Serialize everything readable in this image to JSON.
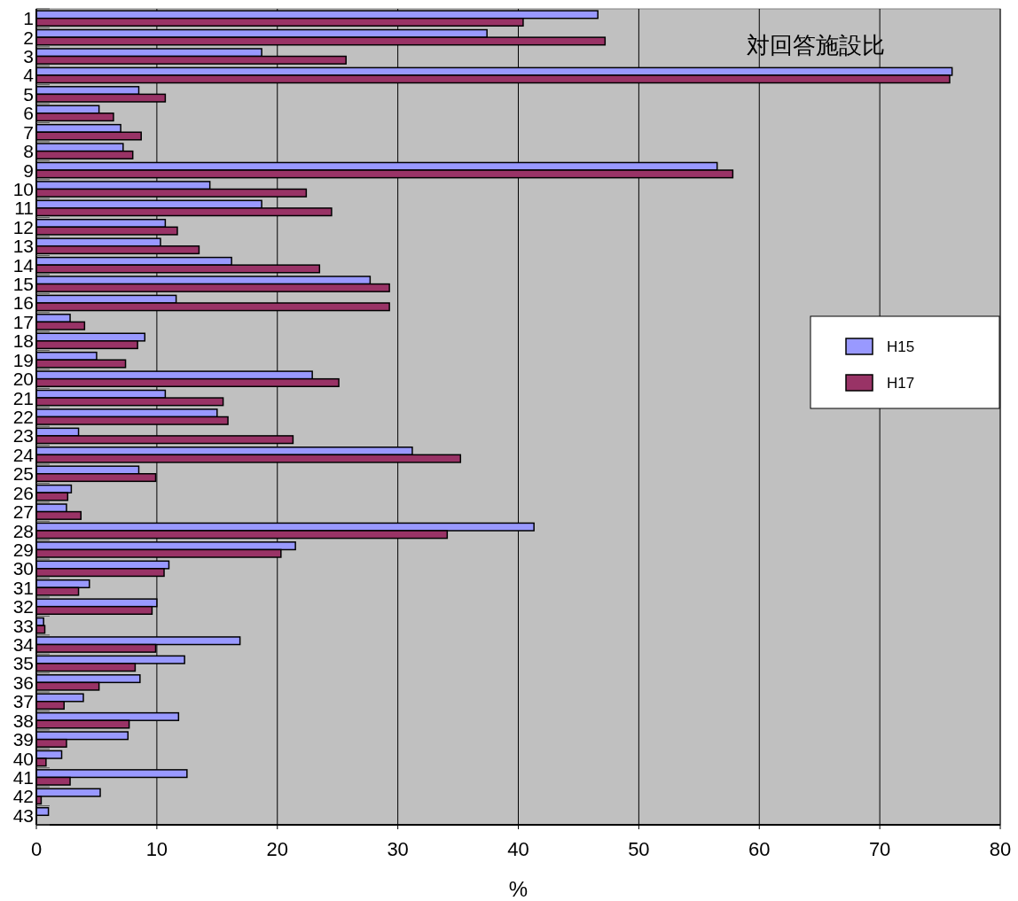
{
  "chart_data": {
    "type": "bar",
    "orientation": "horizontal",
    "title": "対回答施設比",
    "xlabel": "%",
    "categories": [
      "1",
      "2",
      "3",
      "4",
      "5",
      "6",
      "7",
      "8",
      "9",
      "10",
      "11",
      "12",
      "13",
      "14",
      "15",
      "16",
      "17",
      "18",
      "19",
      "20",
      "21",
      "22",
      "23",
      "24",
      "25",
      "26",
      "27",
      "28",
      "29",
      "30",
      "31",
      "32",
      "33",
      "34",
      "35",
      "36",
      "37",
      "38",
      "39",
      "40",
      "41",
      "42",
      "43"
    ],
    "series": [
      {
        "name": "H15",
        "color": "#9999ff",
        "values": [
          46.6,
          37.4,
          18.7,
          76.0,
          8.5,
          5.2,
          7.0,
          7.2,
          56.5,
          14.4,
          18.7,
          10.7,
          10.3,
          16.2,
          27.7,
          11.6,
          2.8,
          9.0,
          5.0,
          22.9,
          10.7,
          15.0,
          3.5,
          31.2,
          8.5,
          2.9,
          2.5,
          41.3,
          21.5,
          11.0,
          4.4,
          10.0,
          0.6,
          16.9,
          12.3,
          8.6,
          3.9,
          11.8,
          7.6,
          2.1,
          12.5,
          5.3,
          1.0
        ]
      },
      {
        "name": "H17",
        "color": "#993366",
        "values": [
          40.4,
          47.2,
          25.7,
          75.8,
          10.7,
          6.4,
          8.7,
          8.0,
          57.8,
          22.4,
          24.5,
          11.7,
          13.5,
          23.5,
          29.3,
          29.3,
          4.0,
          8.4,
          7.4,
          25.1,
          15.5,
          15.9,
          21.3,
          35.2,
          9.9,
          2.6,
          3.7,
          34.1,
          20.3,
          10.6,
          3.5,
          9.6,
          0.7,
          9.9,
          8.2,
          5.2,
          2.3,
          7.7,
          2.5,
          0.8,
          2.8,
          0.4,
          null
        ]
      }
    ],
    "xlim": [
      0,
      80
    ],
    "xticks": [
      0,
      10,
      20,
      30,
      40,
      50,
      60,
      70,
      80
    ],
    "grid": "x",
    "legend": "right"
  }
}
